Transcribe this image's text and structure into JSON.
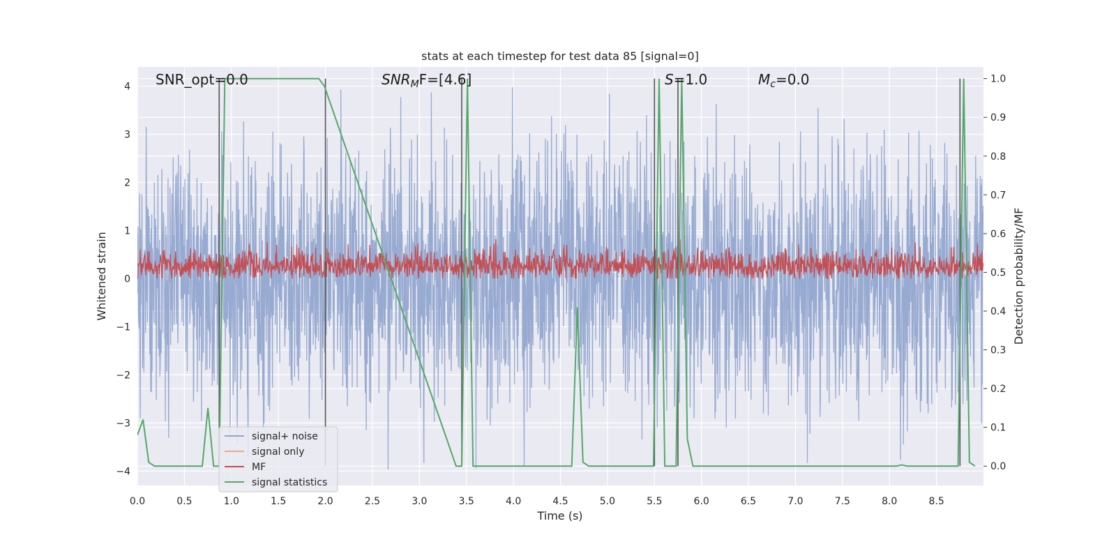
{
  "chart_data": {
    "type": "line",
    "title": "stats at each timestep for test data 85 [signal=0]",
    "xlabel": "Time (s)",
    "ylabel": "Whitened strain",
    "ylabel_right": "Detection probability/MF",
    "xlim": [
      0.0,
      9.0
    ],
    "ylim": [
      -4.3,
      4.4
    ],
    "ylim_right": [
      -0.05,
      1.03
    ],
    "xticks": [
      "0.0",
      "0.5",
      "1.0",
      "1.5",
      "2.0",
      "2.5",
      "3.0",
      "3.5",
      "4.0",
      "4.5",
      "5.0",
      "5.5",
      "6.0",
      "6.5",
      "7.0",
      "7.5",
      "8.0",
      "8.5"
    ],
    "yticks": [
      "−4",
      "−3",
      "−2",
      "−1",
      "0",
      "1",
      "2",
      "3",
      "4"
    ],
    "yticks_right": [
      "0.0",
      "0.1",
      "0.2",
      "0.3",
      "0.4",
      "0.5",
      "0.6",
      "0.7",
      "0.8",
      "0.9",
      "1.0"
    ],
    "grid": true,
    "legend": {
      "location": "lower-left",
      "entries": [
        "signal+ noise",
        "signal only",
        "MF",
        "signal statistics"
      ]
    },
    "annotations": {
      "snr_opt": "SNR_opt=0.0",
      "snr_mf_base": "SNR",
      "snr_mf_sub": "M",
      "snr_mf_rest": "F=[4.6]",
      "s_base": "S",
      "s_rest": "=1.0",
      "mc_base": "M",
      "mc_sub": "c",
      "mc_rest": "=0.0"
    },
    "colors": {
      "signal_noise": "#92a6cf",
      "signal_only": "#e8a98a",
      "mf": "#c44e52",
      "signal_statistics": "#55a868",
      "background": "#eaeaf2",
      "vlines": "#555555"
    },
    "noise_envelope": {
      "typical_amplitude": 1.6,
      "peak_amplitude": 4.0
    },
    "mf_band": {
      "min": 0.0,
      "max": 0.82
    },
    "vertical_lines_x": [
      0.87,
      2.0,
      3.45,
      5.5,
      5.75,
      8.75
    ],
    "series": [
      {
        "name": "signal statistics",
        "axis": "right",
        "x": [
          0.0,
          0.06,
          0.12,
          0.18,
          0.69,
          0.75,
          0.81,
          0.87,
          0.93,
          1.93,
          1.99,
          3.39,
          3.45,
          3.51,
          3.57,
          4.62,
          4.68,
          4.74,
          4.8,
          5.49,
          5.55,
          5.61,
          5.73,
          5.79,
          5.85,
          5.91,
          8.07,
          8.13,
          8.19,
          8.73,
          8.79,
          8.85,
          8.91
        ],
        "y": [
          0.08,
          0.12,
          0.01,
          0.0,
          0.0,
          0.15,
          0.0,
          0.0,
          1.0,
          1.0,
          0.98,
          0.0,
          0.0,
          1.0,
          0.0,
          0.0,
          0.41,
          0.01,
          0.0,
          0.0,
          1.0,
          0.0,
          0.0,
          1.0,
          0.07,
          0.0,
          0.0,
          0.003,
          0.0,
          0.0,
          1.0,
          0.01,
          0.0
        ]
      }
    ]
  }
}
